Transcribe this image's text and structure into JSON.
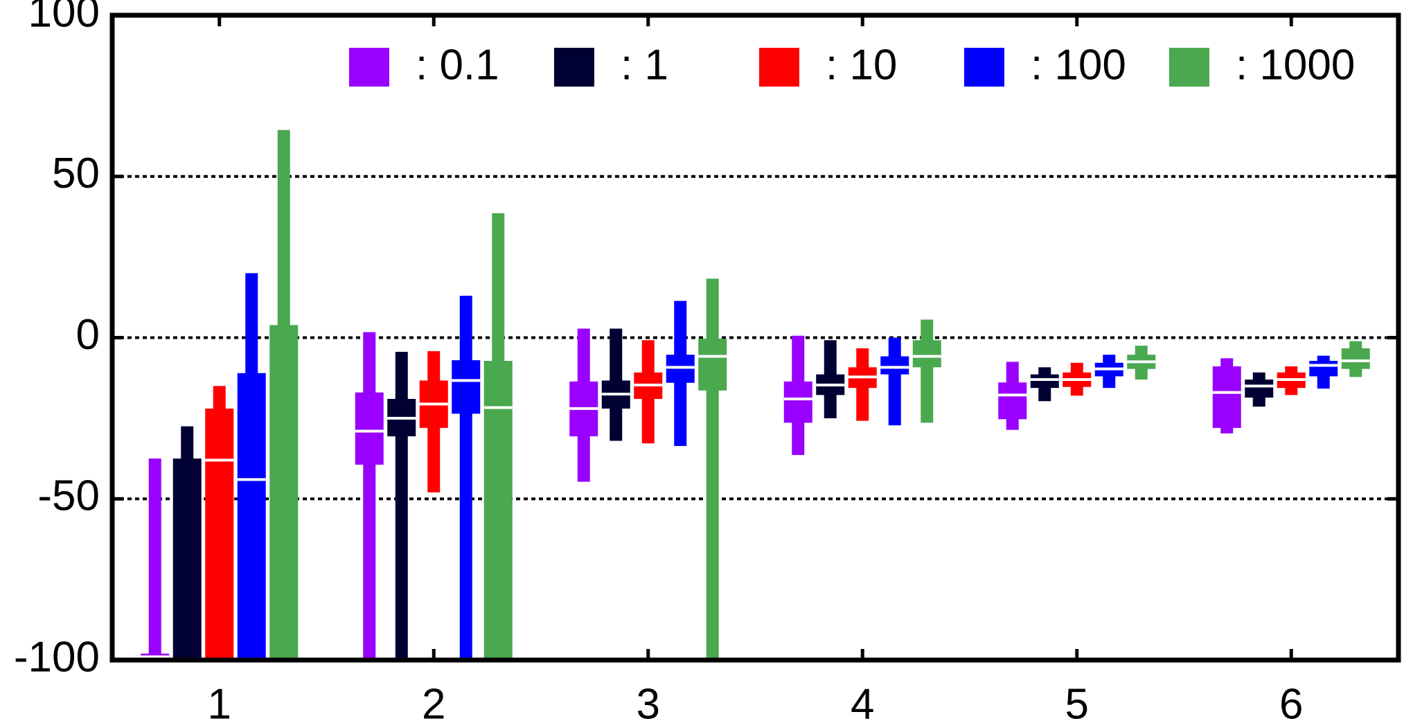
{
  "chart_data": {
    "type": "boxplot",
    "categories": [
      "1",
      "2",
      "3",
      "4",
      "5",
      "6"
    ],
    "ylim": [
      -100,
      100
    ],
    "yticks": [
      -100,
      -50,
      0,
      50,
      100
    ],
    "grid": true,
    "legend": "upper right",
    "series": [
      {
        "name": ": 0.1",
        "color": "#9900ff",
        "min": [
          -100,
          -100,
          -44.7,
          -36.4,
          -28.6,
          -29.7
        ],
        "q1": [
          -100,
          -39.4,
          -30.6,
          -26.4,
          -25.3,
          -28
        ],
        "median": [
          -99,
          -29,
          -22,
          -19,
          -17.8,
          -17
        ],
        "q3": [
          -98,
          -17,
          -13.6,
          -13.6,
          -13.9,
          -8.9
        ],
        "max": [
          -37.5,
          1.7,
          2.8,
          0.6,
          -7.5,
          -6.4
        ]
      },
      {
        "name": ": 1",
        "color": "#000033",
        "min": [
          -100,
          -100,
          -32,
          -25,
          -19.7,
          -21.4
        ],
        "q1": [
          -100,
          -30.6,
          -22,
          -17.8,
          -15.6,
          -18.6
        ],
        "median": [
          -100,
          -25,
          -17.5,
          -14.7,
          -13,
          -15
        ],
        "q3": [
          -37.5,
          -19,
          -13.3,
          -11.4,
          -11.4,
          -13
        ],
        "max": [
          -27.5,
          -4.4,
          2.8,
          -0.8,
          -9.2,
          -10.8
        ]
      },
      {
        "name": ": 10",
        "color": "#ff0000",
        "min": [
          -100,
          -48,
          -32.8,
          -25.8,
          -18,
          -17.8
        ],
        "q1": [
          -100,
          -28,
          -19,
          -15.6,
          -15.3,
          -15.6
        ],
        "median": [
          -38,
          -20.6,
          -14.7,
          -12.2,
          -13,
          -13
        ],
        "q3": [
          -22,
          -13.3,
          -10.8,
          -9.2,
          -10.8,
          -10.8
        ],
        "max": [
          -15,
          -4.2,
          -0.8,
          -3.3,
          -7.8,
          -8.9
        ]
      },
      {
        "name": ": 100",
        "color": "#0000ff",
        "min": [
          -100,
          -100,
          -33.6,
          -27.2,
          -15.6,
          -15.8
        ],
        "q1": [
          -100,
          -23.6,
          -14,
          -11.4,
          -12,
          -12
        ],
        "median": [
          -44,
          -13.3,
          -9.2,
          -9.2,
          -9.7,
          -8.6
        ],
        "q3": [
          -11,
          -7,
          -5.3,
          -5.8,
          -7.8,
          -7.2
        ],
        "max": [
          20,
          13,
          11.4,
          0,
          -5.3,
          -5.6
        ]
      },
      {
        "name": ": 1000",
        "color": "#4aa84f",
        "min": [
          -100,
          -100,
          -100,
          -26.4,
          -13,
          -12.2
        ],
        "q1": [
          -100,
          -100,
          -16.4,
          -9.2,
          -9.7,
          -9.7
        ],
        "median": [
          -100,
          -21.7,
          -5.8,
          -5.8,
          -7.5,
          -7.2
        ],
        "q3": [
          3.9,
          -7.2,
          -0.3,
          -0.8,
          -5.3,
          -3.3
        ],
        "max": [
          64.4,
          38.6,
          18.3,
          5.6,
          -2.5,
          -1.1
        ]
      }
    ]
  }
}
